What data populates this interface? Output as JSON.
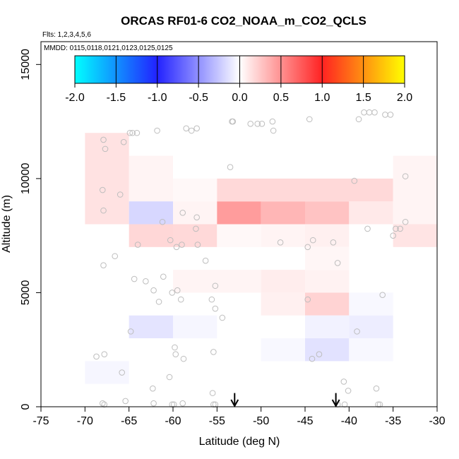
{
  "chart_data": {
    "type": "heatmap",
    "title": "ORCAS RF01-6 CO2_NOAA_m_CO2_QCLS",
    "flights_label": "Flts: 1,2,3,4,5,6",
    "dates_label": "MMDD: 0115,0118,0121,0123,0125,0125",
    "xlabel": "Latitude (deg N)",
    "ylabel": "Altitude (m)",
    "xlim": [
      -75,
      -30
    ],
    "ylim": [
      0,
      16000
    ],
    "xticks": [
      -75,
      -70,
      -65,
      -60,
      -55,
      -50,
      -45,
      -40,
      -35,
      -30
    ],
    "xtick_labels": [
      "-75",
      "-70",
      "-65",
      "-60",
      "-55",
      "-50",
      "-45",
      "-40",
      "-35",
      "-30"
    ],
    "yticks": [
      0,
      5000,
      10000,
      15000
    ],
    "ytick_labels": [
      "0",
      "5000",
      "10000",
      "15000"
    ],
    "colorbar": {
      "min": -2.0,
      "max": 2.0,
      "ticks": [
        -2.0,
        -1.5,
        -1.0,
        -0.5,
        0.0,
        0.5,
        1.0,
        1.5,
        2.0
      ],
      "tick_labels": [
        "-2.0",
        "-1.5",
        "-1.0",
        "-0.5",
        "0.0",
        "0.5",
        "1.0",
        "1.5",
        "2.0"
      ],
      "colors": [
        {
          "v": -2.0,
          "c": "#00ffff"
        },
        {
          "v": -1.0,
          "c": "#2222ff"
        },
        {
          "v": 0.0,
          "c": "#ffffff"
        },
        {
          "v": 1.0,
          "c": "#ff2222"
        },
        {
          "v": 2.0,
          "c": "#ffff00"
        }
      ]
    },
    "cells": [
      {
        "lat": [
          -70,
          -65
        ],
        "alt": [
          8000,
          12000
        ],
        "v": 0.13
      },
      {
        "lat": [
          -65,
          -60
        ],
        "alt": [
          9000,
          11000
        ],
        "v": 0.05
      },
      {
        "lat": [
          -60,
          -55
        ],
        "alt": [
          9000,
          10000
        ],
        "v": 0.03
      },
      {
        "lat": [
          -65,
          -60
        ],
        "alt": [
          8000,
          9000
        ],
        "v": -0.18
      },
      {
        "lat": [
          -60,
          -55
        ],
        "alt": [
          8000,
          9000
        ],
        "v": 0.05
      },
      {
        "lat": [
          -55,
          -50
        ],
        "alt": [
          8000,
          9000
        ],
        "v": 0.45
      },
      {
        "lat": [
          -50,
          -45
        ],
        "alt": [
          8000,
          9000
        ],
        "v": 0.33
      },
      {
        "lat": [
          -45,
          -40
        ],
        "alt": [
          8000,
          9000
        ],
        "v": 0.27
      },
      {
        "lat": [
          -40,
          -35
        ],
        "alt": [
          8000,
          9000
        ],
        "v": 0.1
      },
      {
        "lat": [
          -55,
          -35
        ],
        "alt": [
          9000,
          10000
        ],
        "v": 0.17
      },
      {
        "lat": [
          -35,
          -30
        ],
        "alt": [
          8000,
          11000
        ],
        "v": 0.05
      },
      {
        "lat": [
          -65,
          -60
        ],
        "alt": [
          7000,
          8000
        ],
        "v": 0.18
      },
      {
        "lat": [
          -60,
          -55
        ],
        "alt": [
          7000,
          8000
        ],
        "v": 0.17
      },
      {
        "lat": [
          -55,
          -50
        ],
        "alt": [
          7000,
          8000
        ],
        "v": 0.03
      },
      {
        "lat": [
          -50,
          -45
        ],
        "alt": [
          7000,
          8000
        ],
        "v": 0.05
      },
      {
        "lat": [
          -45,
          -40
        ],
        "alt": [
          7000,
          8000
        ],
        "v": 0.07
      },
      {
        "lat": [
          -35,
          -30
        ],
        "alt": [
          7000,
          8000
        ],
        "v": 0.12
      },
      {
        "lat": [
          -45,
          -40
        ],
        "alt": [
          6000,
          7000
        ],
        "v": 0.04
      },
      {
        "lat": [
          -60,
          -50
        ],
        "alt": [
          5000,
          6000
        ],
        "v": 0.05
      },
      {
        "lat": [
          -50,
          -45
        ],
        "alt": [
          5000,
          6000
        ],
        "v": 0.08
      },
      {
        "lat": [
          -45,
          -40
        ],
        "alt": [
          5000,
          6000
        ],
        "v": 0.06
      },
      {
        "lat": [
          -50,
          -45
        ],
        "alt": [
          4000,
          5000
        ],
        "v": 0.07
      },
      {
        "lat": [
          -45,
          -40
        ],
        "alt": [
          4000,
          5000
        ],
        "v": 0.2
      },
      {
        "lat": [
          -40,
          -35
        ],
        "alt": [
          4000,
          5000
        ],
        "v": -0.03
      },
      {
        "lat": [
          -65,
          -60
        ],
        "alt": [
          3000,
          4000
        ],
        "v": -0.12
      },
      {
        "lat": [
          -60,
          -55
        ],
        "alt": [
          3000,
          4000
        ],
        "v": -0.04
      },
      {
        "lat": [
          -45,
          -40
        ],
        "alt": [
          3000,
          4000
        ],
        "v": -0.06
      },
      {
        "lat": [
          -40,
          -35
        ],
        "alt": [
          3000,
          4000
        ],
        "v": -0.08
      },
      {
        "lat": [
          -50,
          -45
        ],
        "alt": [
          2000,
          3000
        ],
        "v": -0.03
      },
      {
        "lat": [
          -45,
          -40
        ],
        "alt": [
          2000,
          3000
        ],
        "v": -0.13
      },
      {
        "lat": [
          -40,
          -35
        ],
        "alt": [
          2000,
          3000
        ],
        "v": -0.03
      },
      {
        "lat": [
          -70,
          -65
        ],
        "alt": [
          1000,
          2000
        ],
        "v": -0.04
      }
    ],
    "flight_points": [
      {
        "lat": -67.9,
        "alt": 11700
      },
      {
        "lat": -67.7,
        "alt": 11300
      },
      {
        "lat": -65.6,
        "alt": 11600
      },
      {
        "lat": -64.9,
        "alt": 12000
      },
      {
        "lat": -64.6,
        "alt": 12000
      },
      {
        "lat": -64.1,
        "alt": 12000
      },
      {
        "lat": -61.8,
        "alt": 12100
      },
      {
        "lat": -58.5,
        "alt": 12200
      },
      {
        "lat": -57.9,
        "alt": 12100
      },
      {
        "lat": -57.3,
        "alt": 12200
      },
      {
        "lat": -53.3,
        "alt": 12500
      },
      {
        "lat": -53.2,
        "alt": 12500
      },
      {
        "lat": -51.2,
        "alt": 12400
      },
      {
        "lat": -50.4,
        "alt": 12400
      },
      {
        "lat": -49.9,
        "alt": 12400
      },
      {
        "lat": -48.7,
        "alt": 12500
      },
      {
        "lat": -48.6,
        "alt": 12100
      },
      {
        "lat": -44.5,
        "alt": 12600
      },
      {
        "lat": -38.9,
        "alt": 12600
      },
      {
        "lat": -38.3,
        "alt": 12900
      },
      {
        "lat": -37.7,
        "alt": 12900
      },
      {
        "lat": -37.1,
        "alt": 12900
      },
      {
        "lat": -35.9,
        "alt": 12800
      },
      {
        "lat": -35.3,
        "alt": 12800
      },
      {
        "lat": -53.5,
        "alt": 10500
      },
      {
        "lat": -39.4,
        "alt": 9900
      },
      {
        "lat": -33.6,
        "alt": 10100
      },
      {
        "lat": -68.0,
        "alt": 9500
      },
      {
        "lat": -66.0,
        "alt": 9300
      },
      {
        "lat": -67.9,
        "alt": 8600
      },
      {
        "lat": -58.9,
        "alt": 8500
      },
      {
        "lat": -57.3,
        "alt": 8300
      },
      {
        "lat": -61.2,
        "alt": 8100
      },
      {
        "lat": -33.6,
        "alt": 8100
      },
      {
        "lat": -57.4,
        "alt": 7800
      },
      {
        "lat": -37.9,
        "alt": 7800
      },
      {
        "lat": -34.7,
        "alt": 7800
      },
      {
        "lat": -34.2,
        "alt": 7800
      },
      {
        "lat": -35.0,
        "alt": 7500
      },
      {
        "lat": -60.3,
        "alt": 7300
      },
      {
        "lat": -44.1,
        "alt": 7300
      },
      {
        "lat": -41.8,
        "alt": 7200
      },
      {
        "lat": -47.8,
        "alt": 7200
      },
      {
        "lat": -64.0,
        "alt": 7100
      },
      {
        "lat": -59.0,
        "alt": 7100
      },
      {
        "lat": -59.6,
        "alt": 7000
      },
      {
        "lat": -57.2,
        "alt": 7100
      },
      {
        "lat": -44.7,
        "alt": 7000
      },
      {
        "lat": -66.6,
        "alt": 6600
      },
      {
        "lat": -56.3,
        "alt": 6400
      },
      {
        "lat": -41.3,
        "alt": 6300
      },
      {
        "lat": -67.9,
        "alt": 6200
      },
      {
        "lat": -64.4,
        "alt": 5600
      },
      {
        "lat": -61.1,
        "alt": 5700
      },
      {
        "lat": -63.1,
        "alt": 5500
      },
      {
        "lat": -59.5,
        "alt": 5100
      },
      {
        "lat": -62.2,
        "alt": 5100
      },
      {
        "lat": -60.1,
        "alt": 5000
      },
      {
        "lat": -55.2,
        "alt": 5300
      },
      {
        "lat": -55.6,
        "alt": 4700
      },
      {
        "lat": -59.1,
        "alt": 4700
      },
      {
        "lat": -36.2,
        "alt": 4900
      },
      {
        "lat": -44.7,
        "alt": 4700
      },
      {
        "lat": -61.6,
        "alt": 4600
      },
      {
        "lat": -55.2,
        "alt": 4300
      },
      {
        "lat": -54.4,
        "alt": 3900
      },
      {
        "lat": -64.8,
        "alt": 3300
      },
      {
        "lat": -39.1,
        "alt": 3300
      },
      {
        "lat": -59.8,
        "alt": 2600
      },
      {
        "lat": -55.4,
        "alt": 2400
      },
      {
        "lat": -59.7,
        "alt": 2300
      },
      {
        "lat": -58.8,
        "alt": 2100
      },
      {
        "lat": -68.7,
        "alt": 2200
      },
      {
        "lat": -67.8,
        "alt": 2300
      },
      {
        "lat": -44.2,
        "alt": 2100
      },
      {
        "lat": -43.4,
        "alt": 2300
      },
      {
        "lat": -65.8,
        "alt": 1500
      },
      {
        "lat": -60.4,
        "alt": 1300
      },
      {
        "lat": -40.6,
        "alt": 1100
      },
      {
        "lat": -62.3,
        "alt": 800
      },
      {
        "lat": -55.5,
        "alt": 600
      },
      {
        "lat": -40.1,
        "alt": 700
      },
      {
        "lat": -36.9,
        "alt": 800
      },
      {
        "lat": -68.0,
        "alt": 150
      },
      {
        "lat": -67.8,
        "alt": 100
      },
      {
        "lat": -65.4,
        "alt": 250
      },
      {
        "lat": -62.2,
        "alt": 150
      },
      {
        "lat": -60.1,
        "alt": 100
      },
      {
        "lat": -59.9,
        "alt": 100
      },
      {
        "lat": -58.9,
        "alt": 150
      },
      {
        "lat": -55.4,
        "alt": 100
      },
      {
        "lat": -55.2,
        "alt": 100
      },
      {
        "lat": -41.3,
        "alt": 100
      },
      {
        "lat": -40.5,
        "alt": 100
      },
      {
        "lat": -36.7,
        "alt": 100
      },
      {
        "lat": -36.5,
        "alt": 100
      }
    ],
    "arrows": [
      {
        "lat": -53.0,
        "alt": 600
      },
      {
        "lat": -41.5,
        "alt": 600
      }
    ]
  }
}
